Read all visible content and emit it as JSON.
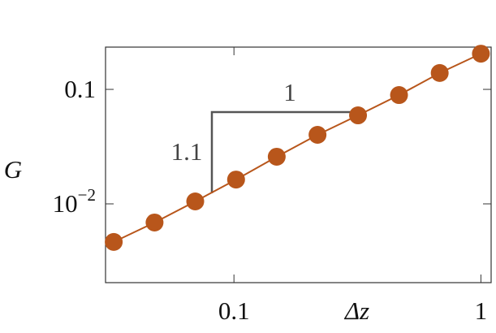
{
  "chart_data": {
    "type": "scatter",
    "x_label": "Δz",
    "y_label": "G",
    "log_x": true,
    "log_y": true,
    "xlim": [
      0.0302,
      1.1
    ],
    "ylim": [
      0.00205,
      0.234
    ],
    "xticks": [
      0.1,
      1
    ],
    "yticks": [
      0.1,
      {
        "value": 0.01,
        "label": "10",
        "exponent": "−2"
      }
    ],
    "color": "#b8561b",
    "x": [
      0.0326,
      0.0477,
      0.0697,
      0.102,
      0.149,
      0.218,
      0.318,
      0.466,
      0.681,
      1.0
    ],
    "values": [
      0.00465,
      0.00687,
      0.0105,
      0.0163,
      0.0258,
      0.0401,
      0.0593,
      0.0892,
      0.139,
      0.205
    ],
    "annotations": [
      "1",
      "1.1"
    ]
  }
}
